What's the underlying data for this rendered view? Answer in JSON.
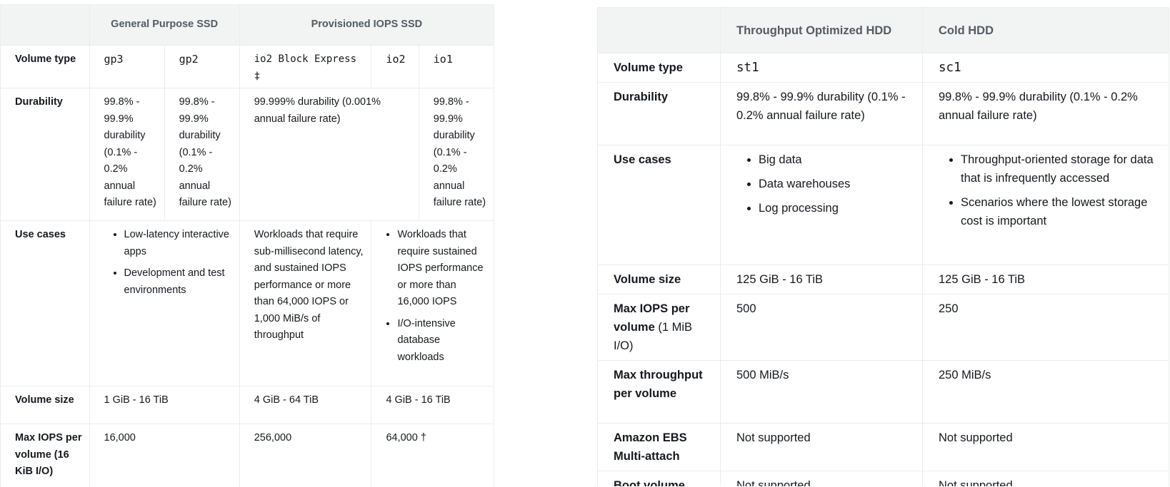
{
  "left": {
    "headers": [
      "General Purpose SSD",
      "Provisioned IOPS SSD"
    ],
    "volume_type": {
      "label": "Volume type",
      "gp3": "gp3",
      "gp2": "gp2",
      "io2be": "io2 Block Express ‡",
      "io2": "io2",
      "io1": "io1"
    },
    "durability": {
      "label": "Durability",
      "gp3": "99.8% - 99.9% durability (0.1% - 0.2% annual failure rate)",
      "gp2": "99.8% - 99.9% durability (0.1% - 0.2% annual failure rate)",
      "io2": "99.999% durability (0.001% annual failure rate)",
      "io1": "99.8% - 99.9% durability (0.1% - 0.2% annual failure rate)"
    },
    "use_cases": {
      "label": "Use cases",
      "gp": [
        "Low-latency interactive apps",
        "Development and test environments"
      ],
      "io2be": "Workloads that require sub-millisecond latency, and sustained IOPS performance or more than 64,000 IOPS or 1,000 MiB/s of throughput",
      "io": [
        "Workloads that require sustained IOPS performance or more than 16,000 IOPS",
        "I/O-intensive database workloads"
      ]
    },
    "volume_size": {
      "label": "Volume size",
      "gp": "1 GiB - 16 TiB",
      "io2be": "4 GiB - 64 TiB",
      "io": "4 GiB - 16 TiB"
    },
    "max_iops": {
      "label": "Max IOPS per volume (16 KiB I/O)",
      "gp": "16,000",
      "io2be": "256,000",
      "io": "64,000 †"
    }
  },
  "right": {
    "headers": [
      "Throughput Optimized HDD",
      "Cold HDD"
    ],
    "volume_type": {
      "label": "Volume type",
      "st1": "st1",
      "sc1": "sc1"
    },
    "durability": {
      "label": "Durability",
      "st1": "99.8% - 99.9% durability (0.1% - 0.2% annual failure rate)",
      "sc1": "99.8% - 99.9% durability (0.1% - 0.2% annual failure rate)"
    },
    "use_cases": {
      "label": "Use cases",
      "st1": [
        "Big data",
        "Data warehouses",
        "Log processing"
      ],
      "sc1": [
        "Throughput-oriented storage for data that is infrequently accessed",
        "Scenarios where the lowest storage cost is important"
      ]
    },
    "volume_size": {
      "label": "Volume size",
      "st1": "125 GiB - 16 TiB",
      "sc1": "125 GiB - 16 TiB"
    },
    "max_iops": {
      "label_bold": "Max IOPS per volume",
      "label_normal": " (1 MiB I/O)",
      "st1": "500",
      "sc1": "250"
    },
    "max_throughput": {
      "label": "Max throughput per volume",
      "st1": "500 MiB/s",
      "sc1": "250 MiB/s"
    },
    "multi_attach": {
      "label": "Amazon EBS Multi-attach",
      "st1": "Not supported",
      "sc1": "Not supported"
    },
    "boot_volume": {
      "label": "Boot volume",
      "st1": "Not supported",
      "sc1": "Not supported"
    }
  }
}
